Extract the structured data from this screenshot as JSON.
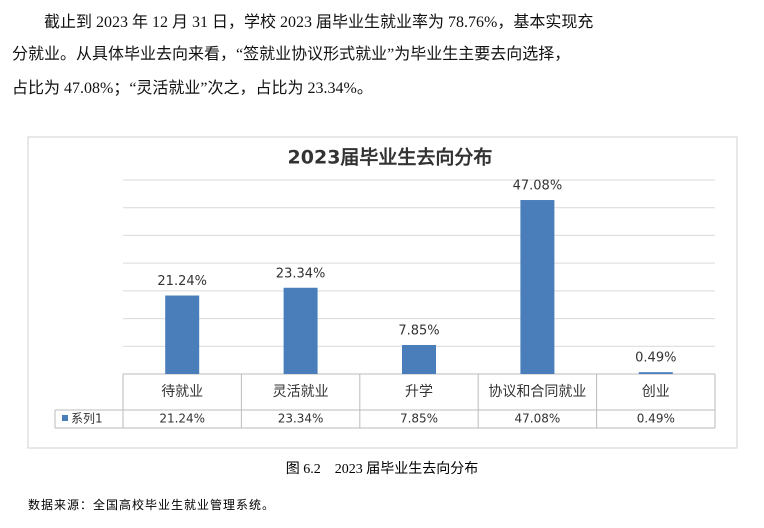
{
  "paragraph": [
    "截止到 2023 年 12 月 31 日，学校 2023 届毕业生就业率为 78.76%，基本实现充",
    "分就业。从具体毕业去向来看，“签就业协议形式就业”为毕业生主要去向选择，",
    "占比为 47.08%；“灵活就业”次之，占比为 23.34%。"
  ],
  "chart_data": {
    "type": "bar",
    "title": "2023届毕业生去向分布",
    "categories": [
      "待就业",
      "灵活就业",
      "升学",
      "协议和合同就业",
      "创业"
    ],
    "series": [
      {
        "name": "系列1",
        "color": "#4a7ebb",
        "values": [
          21.24,
          23.34,
          7.85,
          47.08,
          0.49
        ],
        "value_labels": [
          "21.24%",
          "23.34%",
          "7.85%",
          "47.08%",
          "0.49%"
        ]
      }
    ],
    "ylim": [
      0,
      52.5
    ],
    "yticks": [
      0,
      7.5,
      15,
      22.5,
      30,
      37.5,
      45,
      52.5
    ],
    "grid": true
  },
  "caption": "图 6.2　2023 届毕业生去向分布",
  "source": "数据来源：全国高校毕业生就业管理系统。"
}
